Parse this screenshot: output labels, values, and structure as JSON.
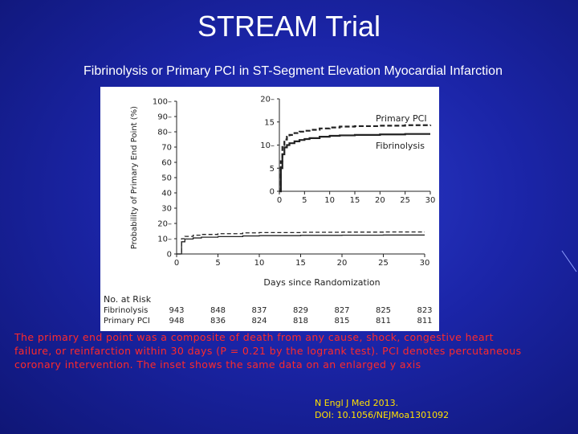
{
  "slide": {
    "title": "STREAM Trial",
    "subtitle": "Fibrinolysis or Primary PCI in ST-Segment Elevation Myocardial Infarction",
    "caption": "The primary end point was a composite of death from any cause, shock, congestive heart failure, or reinfarction within 30 days (P = 0.21 by the logrank test). PCI denotes percutaneous coronary intervention. The inset shows the same data on an enlarged y axis",
    "citation_line1": "N Engl J Med 2013.",
    "citation_line2": "DOI: 10.1056/NEJMoa1301092"
  },
  "chart_data": [
    {
      "type": "line",
      "name": "main",
      "xlabel": "Days since Randomization",
      "ylabel": "Probability of Primary End Point (%)",
      "xlim": [
        0,
        30
      ],
      "ylim": [
        0,
        100
      ],
      "x_ticks": [
        "0",
        "5",
        "10",
        "15",
        "20",
        "25",
        "30"
      ],
      "y_ticks": [
        "0",
        "10–",
        "20–",
        "30",
        "40",
        "50",
        "60",
        "70",
        "80–",
        "90–",
        "100–"
      ],
      "series": [
        {
          "name": "Primary PCI",
          "style": "dashed",
          "x": [
            0,
            0.6,
            1,
            2,
            3,
            5,
            8,
            10,
            15,
            20,
            25,
            30
          ],
          "y": [
            0,
            10,
            11.5,
            12.3,
            12.8,
            13.3,
            13.8,
            14,
            14.2,
            14.3,
            14.4,
            14.4
          ]
        },
        {
          "name": "Fibrinolysis",
          "style": "solid",
          "x": [
            0,
            0.6,
            1,
            2,
            3,
            5,
            8,
            10,
            15,
            20,
            25,
            30
          ],
          "y": [
            0,
            8,
            9.8,
            10.5,
            11,
            11.4,
            11.8,
            12,
            12.2,
            12.3,
            12.4,
            12.4
          ]
        }
      ]
    },
    {
      "type": "line",
      "name": "inset",
      "xlim": [
        0,
        30
      ],
      "ylim": [
        0,
        20
      ],
      "x_ticks": [
        "0",
        "5",
        "10",
        "15",
        "20",
        "25",
        "30"
      ],
      "y_ticks": [
        "0",
        "5",
        "10–",
        "15",
        "20–"
      ],
      "legend": [
        "Primary PCI",
        "Fibrinolysis"
      ],
      "series": [
        {
          "name": "Primary PCI",
          "style": "dashed",
          "x": [
            0,
            0.3,
            0.6,
            1,
            1.5,
            2,
            3,
            4,
            5,
            6,
            8,
            10,
            12,
            15,
            20,
            25,
            30
          ],
          "y": [
            0,
            6.5,
            10,
            11.2,
            11.8,
            12.2,
            12.6,
            12.9,
            13.1,
            13.3,
            13.6,
            13.8,
            14,
            14.1,
            14.2,
            14.3,
            14.4
          ]
        },
        {
          "name": "Fibrinolysis",
          "style": "solid",
          "x": [
            0,
            0.3,
            0.6,
            1,
            1.5,
            2,
            3,
            4,
            5,
            6,
            8,
            10,
            12,
            15,
            20,
            25,
            30
          ],
          "y": [
            0,
            5,
            8,
            9.5,
            10,
            10.4,
            10.8,
            11.1,
            11.3,
            11.5,
            11.8,
            12,
            12.1,
            12.2,
            12.3,
            12.4,
            12.4
          ]
        }
      ]
    }
  ],
  "risk_table": {
    "header": "No. at Risk",
    "rows": [
      {
        "label": "Fibrinolysis",
        "values": [
          "943",
          "848",
          "837",
          "829",
          "827",
          "825",
          "823"
        ]
      },
      {
        "label": "Primary PCI",
        "values": [
          "948",
          "836",
          "824",
          "818",
          "815",
          "811",
          "811"
        ]
      }
    ]
  },
  "colors": {
    "background": "#1b25a8",
    "title_text": "#ffffff",
    "caption_text": "#ff2a2a",
    "citation_text": "#ffe000",
    "chart_ink": "#222222"
  }
}
